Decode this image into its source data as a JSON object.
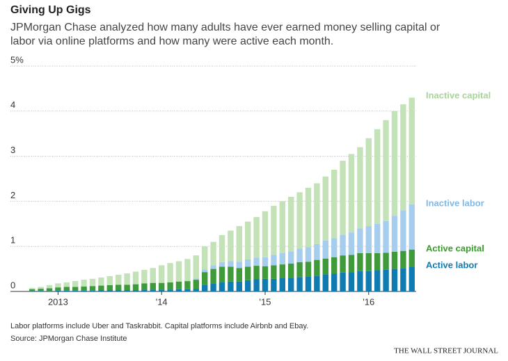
{
  "chart_data": {
    "type": "stacked_bar",
    "title": "Giving Up Gigs",
    "subtitle": [
      "JPMorgan Chase analyzed how many adults have ever earned money selling capital or",
      "labor via online platforms and how many were active each month."
    ],
    "categories": [
      null,
      null,
      null,
      "2013",
      null,
      null,
      null,
      null,
      null,
      null,
      null,
      null,
      null,
      null,
      null,
      "'14",
      null,
      null,
      null,
      null,
      null,
      null,
      null,
      null,
      null,
      null,
      null,
      "'15",
      null,
      null,
      null,
      null,
      null,
      null,
      null,
      null,
      null,
      null,
      null,
      "'16",
      null,
      null,
      null,
      null,
      null
    ],
    "series": [
      {
        "name": "Active labor",
        "color": "#0f7bb1",
        "values": [
          0.01,
          0.01,
          0.01,
          0.02,
          0.02,
          0.02,
          0.02,
          0.02,
          0.03,
          0.03,
          0.03,
          0.03,
          0.03,
          0.04,
          0.04,
          0.04,
          0.04,
          0.05,
          0.05,
          0.06,
          0.15,
          0.18,
          0.2,
          0.22,
          0.22,
          0.25,
          0.27,
          0.28,
          0.28,
          0.3,
          0.3,
          0.32,
          0.33,
          0.35,
          0.38,
          0.4,
          0.42,
          0.43,
          0.45,
          0.45,
          0.47,
          0.48,
          0.5,
          0.52,
          0.55
        ]
      },
      {
        "name": "Active capital",
        "color": "#3f9a3a",
        "values": [
          0.04,
          0.05,
          0.06,
          0.07,
          0.08,
          0.08,
          0.09,
          0.1,
          0.1,
          0.11,
          0.12,
          0.12,
          0.13,
          0.14,
          0.15,
          0.15,
          0.16,
          0.17,
          0.18,
          0.2,
          0.28,
          0.32,
          0.35,
          0.33,
          0.3,
          0.3,
          0.3,
          0.28,
          0.3,
          0.3,
          0.32,
          0.33,
          0.33,
          0.35,
          0.35,
          0.36,
          0.38,
          0.38,
          0.4,
          0.4,
          0.38,
          0.38,
          0.38,
          0.38,
          0.38
        ]
      },
      {
        "name": "Inactive labor",
        "color": "#a6cdee",
        "values": [
          0,
          0,
          0,
          0,
          0,
          0,
          0,
          0,
          0,
          0,
          0,
          0,
          0,
          0,
          0,
          0,
          0,
          0,
          0,
          0.03,
          0.06,
          0.08,
          0.1,
          0.12,
          0.14,
          0.16,
          0.18,
          0.2,
          0.23,
          0.25,
          0.27,
          0.3,
          0.32,
          0.35,
          0.4,
          0.42,
          0.45,
          0.5,
          0.55,
          0.6,
          0.65,
          0.7,
          0.8,
          0.9,
          1.0
        ]
      },
      {
        "name": "Inactive capital",
        "color": "#c3e2b8",
        "values": [
          0.03,
          0.04,
          0.07,
          0.09,
          0.1,
          0.13,
          0.15,
          0.16,
          0.18,
          0.2,
          0.22,
          0.25,
          0.28,
          0.3,
          0.33,
          0.39,
          0.43,
          0.45,
          0.49,
          0.51,
          0.51,
          0.52,
          0.6,
          0.68,
          0.79,
          0.84,
          0.9,
          1.02,
          1.09,
          1.15,
          1.21,
          1.25,
          1.32,
          1.35,
          1.42,
          1.52,
          1.65,
          1.74,
          1.8,
          1.95,
          2.1,
          2.24,
          2.32,
          2.35,
          2.37
        ]
      }
    ],
    "legend_colors": [
      "#0f7bb1",
      "#3d9a2f",
      "#7fb9e8",
      "#a8d59a"
    ],
    "ylim": [
      0,
      5
    ],
    "yticks": [
      0,
      1,
      2,
      3,
      4,
      {
        "value": 5,
        "label": "5%"
      }
    ],
    "grid": true,
    "notes": [
      "Labor platforms include Uber and Taskrabbit. Capital platforms include Airbnb and Ebay.",
      "Source: JPMorgan Chase Institute"
    ],
    "publisher": "THE WALL STREET JOURNAL"
  }
}
